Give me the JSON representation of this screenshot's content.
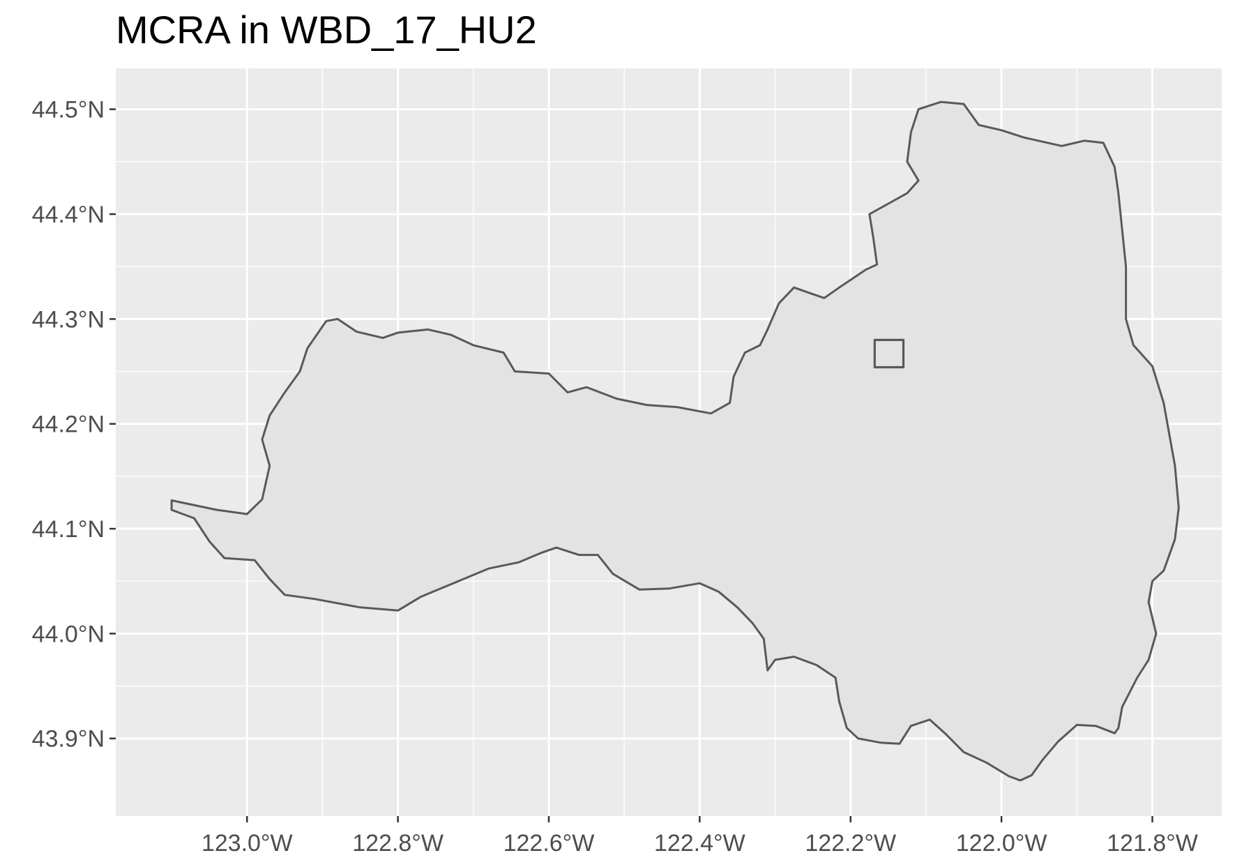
{
  "title": "MCRA in WBD_17_HU2",
  "colors": {
    "panel_background": "#ebebeb",
    "gridline": "#ffffff",
    "watershed_fill": "#e3e3e3",
    "outline": "#595959",
    "tick_text": "#4d4d4d"
  },
  "map": {
    "x_axis": {
      "ticks": [
        {
          "value": -123.0,
          "label": "123.0°W"
        },
        {
          "value": -122.8,
          "label": "122.8°W"
        },
        {
          "value": -122.6,
          "label": "122.6°W"
        },
        {
          "value": -122.4,
          "label": "122.4°W"
        },
        {
          "value": -122.2,
          "label": "122.2°W"
        },
        {
          "value": -122.0,
          "label": "122.0°W"
        },
        {
          "value": -121.8,
          "label": "121.8°W"
        }
      ],
      "range": [
        -123.174,
        -121.708
      ]
    },
    "y_axis": {
      "ticks": [
        {
          "value": 44.5,
          "label": "44.5°N"
        },
        {
          "value": 44.4,
          "label": "44.4°N"
        },
        {
          "value": 44.3,
          "label": "44.3°N"
        },
        {
          "value": 44.2,
          "label": "44.2°N"
        },
        {
          "value": 44.1,
          "label": "44.1°N"
        },
        {
          "value": 44.0,
          "label": "44.0°N"
        },
        {
          "value": 43.9,
          "label": "43.9°N"
        }
      ],
      "range": [
        43.826,
        44.539
      ]
    },
    "features": [
      {
        "name": "watershed",
        "kind": "polygon",
        "coords": [
          [
            -123.1,
            44.127
          ],
          [
            -123.06,
            44.121
          ],
          [
            -123.04,
            44.118
          ],
          [
            -123.0,
            44.114
          ],
          [
            -122.98,
            44.128
          ],
          [
            -122.97,
            44.16
          ],
          [
            -122.98,
            44.185
          ],
          [
            -122.97,
            44.208
          ],
          [
            -122.95,
            44.23
          ],
          [
            -122.93,
            44.25
          ],
          [
            -122.92,
            44.272
          ],
          [
            -122.895,
            44.298
          ],
          [
            -122.88,
            44.3
          ],
          [
            -122.855,
            44.288
          ],
          [
            -122.82,
            44.282
          ],
          [
            -122.8,
            44.287
          ],
          [
            -122.76,
            44.29
          ],
          [
            -122.73,
            44.285
          ],
          [
            -122.7,
            44.275
          ],
          [
            -122.66,
            44.268
          ],
          [
            -122.645,
            44.25
          ],
          [
            -122.6,
            44.248
          ],
          [
            -122.575,
            44.23
          ],
          [
            -122.55,
            44.235
          ],
          [
            -122.51,
            44.224
          ],
          [
            -122.47,
            44.218
          ],
          [
            -122.43,
            44.216
          ],
          [
            -122.385,
            44.21
          ],
          [
            -122.36,
            44.22
          ],
          [
            -122.355,
            44.245
          ],
          [
            -122.34,
            44.268
          ],
          [
            -122.32,
            44.275
          ],
          [
            -122.31,
            44.29
          ],
          [
            -122.295,
            44.315
          ],
          [
            -122.275,
            44.33
          ],
          [
            -122.255,
            44.325
          ],
          [
            -122.235,
            44.32
          ],
          [
            -122.215,
            44.33
          ],
          [
            -122.18,
            44.347
          ],
          [
            -122.165,
            44.352
          ],
          [
            -122.17,
            44.378
          ],
          [
            -122.175,
            44.4
          ],
          [
            -122.15,
            44.41
          ],
          [
            -122.125,
            44.42
          ],
          [
            -122.11,
            44.432
          ],
          [
            -122.125,
            44.45
          ],
          [
            -122.12,
            44.478
          ],
          [
            -122.11,
            44.5
          ],
          [
            -122.08,
            44.507
          ],
          [
            -122.05,
            44.505
          ],
          [
            -122.03,
            44.485
          ],
          [
            -122.0,
            44.48
          ],
          [
            -121.97,
            44.473
          ],
          [
            -121.92,
            44.465
          ],
          [
            -121.89,
            44.47
          ],
          [
            -121.865,
            44.468
          ],
          [
            -121.85,
            44.445
          ],
          [
            -121.845,
            44.42
          ],
          [
            -121.84,
            44.385
          ],
          [
            -121.835,
            44.35
          ],
          [
            -121.835,
            44.3
          ],
          [
            -121.825,
            44.275
          ],
          [
            -121.8,
            44.255
          ],
          [
            -121.785,
            44.22
          ],
          [
            -121.78,
            44.2
          ],
          [
            -121.77,
            44.16
          ],
          [
            -121.765,
            44.12
          ],
          [
            -121.77,
            44.09
          ],
          [
            -121.785,
            44.06
          ],
          [
            -121.8,
            44.05
          ],
          [
            -121.805,
            44.03
          ],
          [
            -121.795,
            44.0
          ],
          [
            -121.805,
            43.975
          ],
          [
            -121.82,
            43.958
          ],
          [
            -121.84,
            43.93
          ],
          [
            -121.845,
            43.91
          ],
          [
            -121.85,
            43.905
          ],
          [
            -121.875,
            43.912
          ],
          [
            -121.9,
            43.913
          ],
          [
            -121.925,
            43.897
          ],
          [
            -121.945,
            43.88
          ],
          [
            -121.96,
            43.865
          ],
          [
            -121.975,
            43.86
          ],
          [
            -121.99,
            43.864
          ],
          [
            -122.02,
            43.877
          ],
          [
            -122.05,
            43.887
          ],
          [
            -122.075,
            43.905
          ],
          [
            -122.095,
            43.918
          ],
          [
            -122.12,
            43.912
          ],
          [
            -122.135,
            43.895
          ],
          [
            -122.16,
            43.896
          ],
          [
            -122.19,
            43.9
          ],
          [
            -122.205,
            43.91
          ],
          [
            -122.215,
            43.935
          ],
          [
            -122.22,
            43.958
          ],
          [
            -122.245,
            43.97
          ],
          [
            -122.275,
            43.978
          ],
          [
            -122.3,
            43.975
          ],
          [
            -122.31,
            43.965
          ],
          [
            -122.315,
            43.995
          ],
          [
            -122.33,
            44.01
          ],
          [
            -122.35,
            44.025
          ],
          [
            -122.375,
            44.04
          ],
          [
            -122.4,
            44.048
          ],
          [
            -122.44,
            44.043
          ],
          [
            -122.48,
            44.042
          ],
          [
            -122.515,
            44.057
          ],
          [
            -122.535,
            44.075
          ],
          [
            -122.56,
            44.075
          ],
          [
            -122.59,
            44.082
          ],
          [
            -122.61,
            44.077
          ],
          [
            -122.64,
            44.068
          ],
          [
            -122.68,
            44.062
          ],
          [
            -122.72,
            44.05
          ],
          [
            -122.77,
            44.035
          ],
          [
            -122.8,
            44.022
          ],
          [
            -122.85,
            44.025
          ],
          [
            -122.91,
            44.033
          ],
          [
            -122.95,
            44.037
          ],
          [
            -122.97,
            44.052
          ],
          [
            -122.99,
            44.07
          ],
          [
            -123.03,
            44.072
          ],
          [
            -123.05,
            44.088
          ],
          [
            -123.07,
            44.11
          ],
          [
            -123.1,
            44.118
          ]
        ]
      },
      {
        "name": "mcra-site",
        "kind": "square",
        "coords": [
          [
            -122.168,
            44.254
          ],
          [
            -122.13,
            44.254
          ],
          [
            -122.13,
            44.28
          ],
          [
            -122.168,
            44.28
          ]
        ]
      }
    ]
  }
}
